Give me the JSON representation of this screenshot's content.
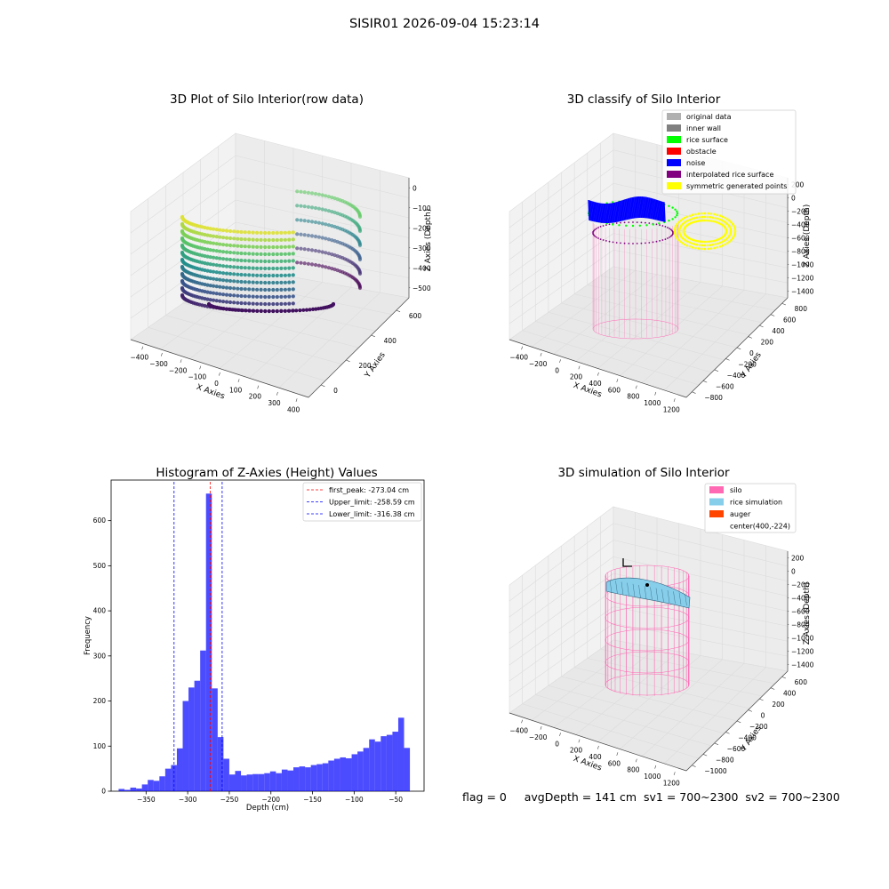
{
  "figure": {
    "suptitle": "SISIR01 2026-09-04 15:23:14"
  },
  "status_line": "flag = 0     avgDepth = 141 cm  sv1 = 700~2300  sv2 = 700~2300",
  "chart_data": [
    {
      "type": "scatter",
      "id": "raw3d",
      "title": "3D Plot of Silo Interior(row data)",
      "xlabel": "X Axies",
      "ylabel": "Y Axies",
      "zlabel": "Z Axies (Depth)",
      "x_ticks": [
        "−400",
        "−300",
        "−200",
        "−100",
        "0",
        "100",
        "200",
        "300",
        "400"
      ],
      "y_ticks": [
        "0",
        "200",
        "400",
        "600"
      ],
      "z_ticks": [
        "0",
        "−100",
        "−200",
        "−300",
        "−400",
        "−500"
      ],
      "colormap": "viridis"
    },
    {
      "type": "scatter",
      "id": "classify3d",
      "title": "3D classify of Silo Interior",
      "xlabel": "X Axies",
      "ylabel": "Y Axies",
      "zlabel": "Z Axies (Depth)",
      "x_ticks": [
        "−400",
        "−200",
        "0",
        "200",
        "400",
        "600",
        "800",
        "1000",
        "1200"
      ],
      "y_ticks": [
        "−800",
        "−600",
        "−400",
        "−200",
        "0",
        "200",
        "400",
        "600",
        "800"
      ],
      "z_ticks": [
        "200",
        "0",
        "−200",
        "−400",
        "−600",
        "−800",
        "−1000",
        "−1200",
        "−1400"
      ],
      "legend": [
        {
          "label": "original data",
          "color": "#b0b0b0"
        },
        {
          "label": "inner wall",
          "color": "#808080"
        },
        {
          "label": "rice surface",
          "color": "#00ff00"
        },
        {
          "label": "obstacle",
          "color": "#ff0000"
        },
        {
          "label": "noise",
          "color": "#0000ff"
        },
        {
          "label": "interpolated rice surface",
          "color": "#800080"
        },
        {
          "label": "symmetric generated points",
          "color": "#ffff00"
        }
      ]
    },
    {
      "type": "bar",
      "id": "hist",
      "title": "Histogram of Z-Axies (Height) Values",
      "xlabel": "Depth (cm)",
      "ylabel": "Frequency",
      "xlim": [
        -392,
        -16
      ],
      "ylim": [
        0,
        690
      ],
      "x_ticks": [
        -350,
        -300,
        -250,
        -200,
        -150,
        -100,
        -50
      ],
      "y_ticks": [
        0,
        100,
        200,
        300,
        400,
        500,
        600
      ],
      "bar_color": "#0000ff",
      "bin_start": -383,
      "bin_width": 7,
      "values": [
        5,
        3,
        8,
        6,
        15,
        25,
        23,
        33,
        50,
        58,
        95,
        200,
        230,
        245,
        312,
        660,
        228,
        120,
        72,
        37,
        45,
        35,
        37,
        38,
        38,
        40,
        44,
        40,
        48,
        46,
        53,
        55,
        53,
        58,
        60,
        62,
        68,
        72,
        75,
        73,
        82,
        88,
        96,
        115,
        110,
        122,
        125,
        132,
        163,
        96
      ],
      "lines": [
        {
          "label": "first_peak: -273.04 cm",
          "x": -273.04,
          "color": "#ff0000"
        },
        {
          "label": "Upper_limit: -258.59 cm",
          "x": -258.59,
          "color": "#0000ff"
        },
        {
          "label": "Lower_limit: -316.38 cm",
          "x": -316.38,
          "color": "#0000ff"
        }
      ]
    },
    {
      "type": "scatter",
      "id": "sim3d",
      "title": "3D simulation of Silo Interior",
      "xlabel": "X Axies",
      "ylabel": "Y Axies",
      "zlabel": "Z Axies (Depth)",
      "x_ticks": [
        "−400",
        "−200",
        "0",
        "200",
        "400",
        "600",
        "800",
        "1000",
        "1200"
      ],
      "y_ticks": [
        "−1000",
        "−800",
        "−600",
        "−400",
        "−200",
        "0",
        "200",
        "400",
        "600"
      ],
      "z_ticks": [
        "200",
        "0",
        "−200",
        "−400",
        "−600",
        "−800",
        "−1000",
        "−1200",
        "−1400"
      ],
      "legend": [
        {
          "label": "silo",
          "color": "#ff69b4"
        },
        {
          "label": "rice simulation",
          "color": "#87ceeb"
        },
        {
          "label": "auger",
          "color": "#ff4500"
        },
        {
          "label": "center(400,-224)",
          "color": ""
        }
      ]
    }
  ]
}
